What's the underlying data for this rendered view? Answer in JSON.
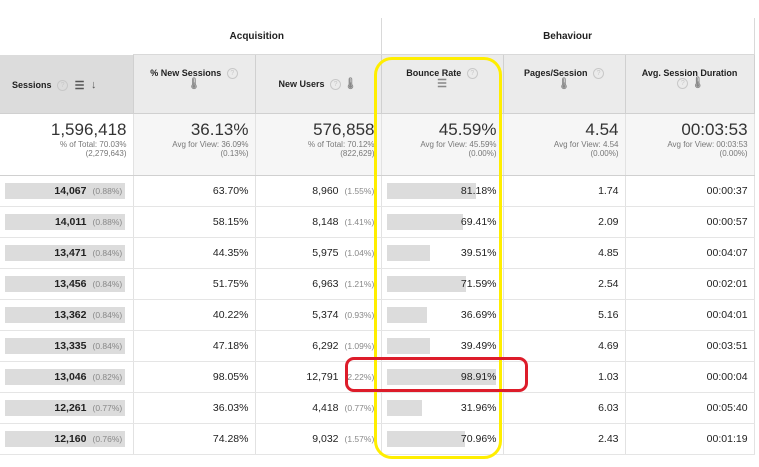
{
  "groups": {
    "acquisition": "Acquisition",
    "behaviour": "Behaviour"
  },
  "headers": {
    "sessions": "Sessions",
    "new_sessions": "% New Sessions",
    "new_users": "New Users",
    "bounce_rate": "Bounce Rate",
    "pages_session": "Pages/Session",
    "avg_duration": "Avg. Session Duration"
  },
  "totals": {
    "sessions": {
      "value": "1,596,418",
      "line1": "% of Total: 70.03%",
      "line2": "(2,279,643)"
    },
    "new_sessions": {
      "value": "36.13%",
      "line1": "Avg for View: 36.09%",
      "line2": "(0.13%)"
    },
    "new_users": {
      "value": "576,858",
      "line1": "% of Total: 70.12%",
      "line2": "(822,629)"
    },
    "bounce_rate": {
      "value": "45.59%",
      "line1": "Avg for View: 45.59%",
      "line2": "(0.00%)"
    },
    "pages_session": {
      "value": "4.54",
      "line1": "Avg for View: 4.54",
      "line2": "(0.00%)"
    },
    "avg_duration": {
      "value": "00:03:53",
      "line1": "Avg for View: 00:03:53",
      "line2": "(0.00%)"
    }
  },
  "rows": [
    {
      "sessions": "14,067",
      "sessions_pct": "(0.88%)",
      "new_sessions": "63.70%",
      "new_users": "8,960",
      "new_users_pct": "(1.55%)",
      "bounce_rate": "81.18%",
      "bounce_value": 81.18,
      "pages": "1.74",
      "duration": "00:00:37"
    },
    {
      "sessions": "14,011",
      "sessions_pct": "(0.88%)",
      "new_sessions": "58.15%",
      "new_users": "8,148",
      "new_users_pct": "(1.41%)",
      "bounce_rate": "69.41%",
      "bounce_value": 69.41,
      "pages": "2.09",
      "duration": "00:00:57"
    },
    {
      "sessions": "13,471",
      "sessions_pct": "(0.84%)",
      "new_sessions": "44.35%",
      "new_users": "5,975",
      "new_users_pct": "(1.04%)",
      "bounce_rate": "39.51%",
      "bounce_value": 39.51,
      "pages": "4.85",
      "duration": "00:04:07"
    },
    {
      "sessions": "13,456",
      "sessions_pct": "(0.84%)",
      "new_sessions": "51.75%",
      "new_users": "6,963",
      "new_users_pct": "(1.21%)",
      "bounce_rate": "71.59%",
      "bounce_value": 71.59,
      "pages": "2.54",
      "duration": "00:02:01"
    },
    {
      "sessions": "13,362",
      "sessions_pct": "(0.84%)",
      "new_sessions": "40.22%",
      "new_users": "5,374",
      "new_users_pct": "(0.93%)",
      "bounce_rate": "36.69%",
      "bounce_value": 36.69,
      "pages": "5.16",
      "duration": "00:04:01"
    },
    {
      "sessions": "13,335",
      "sessions_pct": "(0.84%)",
      "new_sessions": "47.18%",
      "new_users": "6,292",
      "new_users_pct": "(1.09%)",
      "bounce_rate": "39.49%",
      "bounce_value": 39.49,
      "pages": "4.69",
      "duration": "00:03:51"
    },
    {
      "sessions": "13,046",
      "sessions_pct": "(0.82%)",
      "new_sessions": "98.05%",
      "new_users": "12,791",
      "new_users_pct": "(2.22%)",
      "bounce_rate": "98.91%",
      "bounce_value": 98.91,
      "pages": "1.03",
      "duration": "00:00:04"
    },
    {
      "sessions": "12,261",
      "sessions_pct": "(0.77%)",
      "new_sessions": "36.03%",
      "new_users": "4,418",
      "new_users_pct": "(0.77%)",
      "bounce_rate": "31.96%",
      "bounce_value": 31.96,
      "pages": "6.03",
      "duration": "00:05:40"
    },
    {
      "sessions": "12,160",
      "sessions_pct": "(0.76%)",
      "new_sessions": "74.28%",
      "new_users": "9,032",
      "new_users_pct": "(1.57%)",
      "bounce_rate": "70.96%",
      "bounce_value": 70.96,
      "pages": "2.43",
      "duration": "00:01:19"
    }
  ],
  "icons": {
    "help": "question-mark-icon",
    "sort": "sort-descending-icon",
    "thermometer": "thermometer-icon",
    "bars": "bar-sort-icon"
  },
  "colors": {
    "highlight_yellow": "#ffee00",
    "highlight_red": "#dd1c2a",
    "bar_gray": "#dcdcdc",
    "header_gray": "#ebebeb"
  }
}
